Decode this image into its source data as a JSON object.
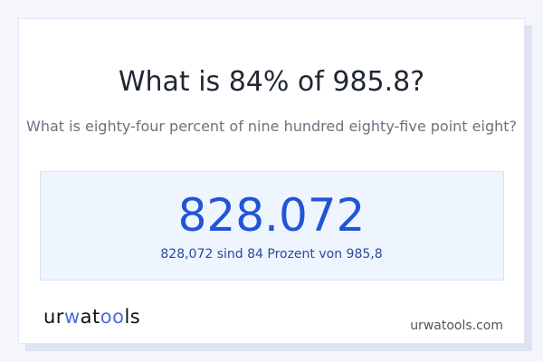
{
  "title": "What is 84% of 985.8?",
  "subtitle": "What is eighty-four percent of nine hundred eighty-five point eight?",
  "result": "828.072",
  "result_text": "828,072 sind 84 Prozent von 985,8",
  "logo": {
    "part1": "ur",
    "part2": "w",
    "part3": "at",
    "part4": "oo",
    "part5": "ls"
  },
  "site": "urwatools.com",
  "colors": {
    "accent": "#2155d6",
    "logo_accent": "#4a6ee0"
  }
}
